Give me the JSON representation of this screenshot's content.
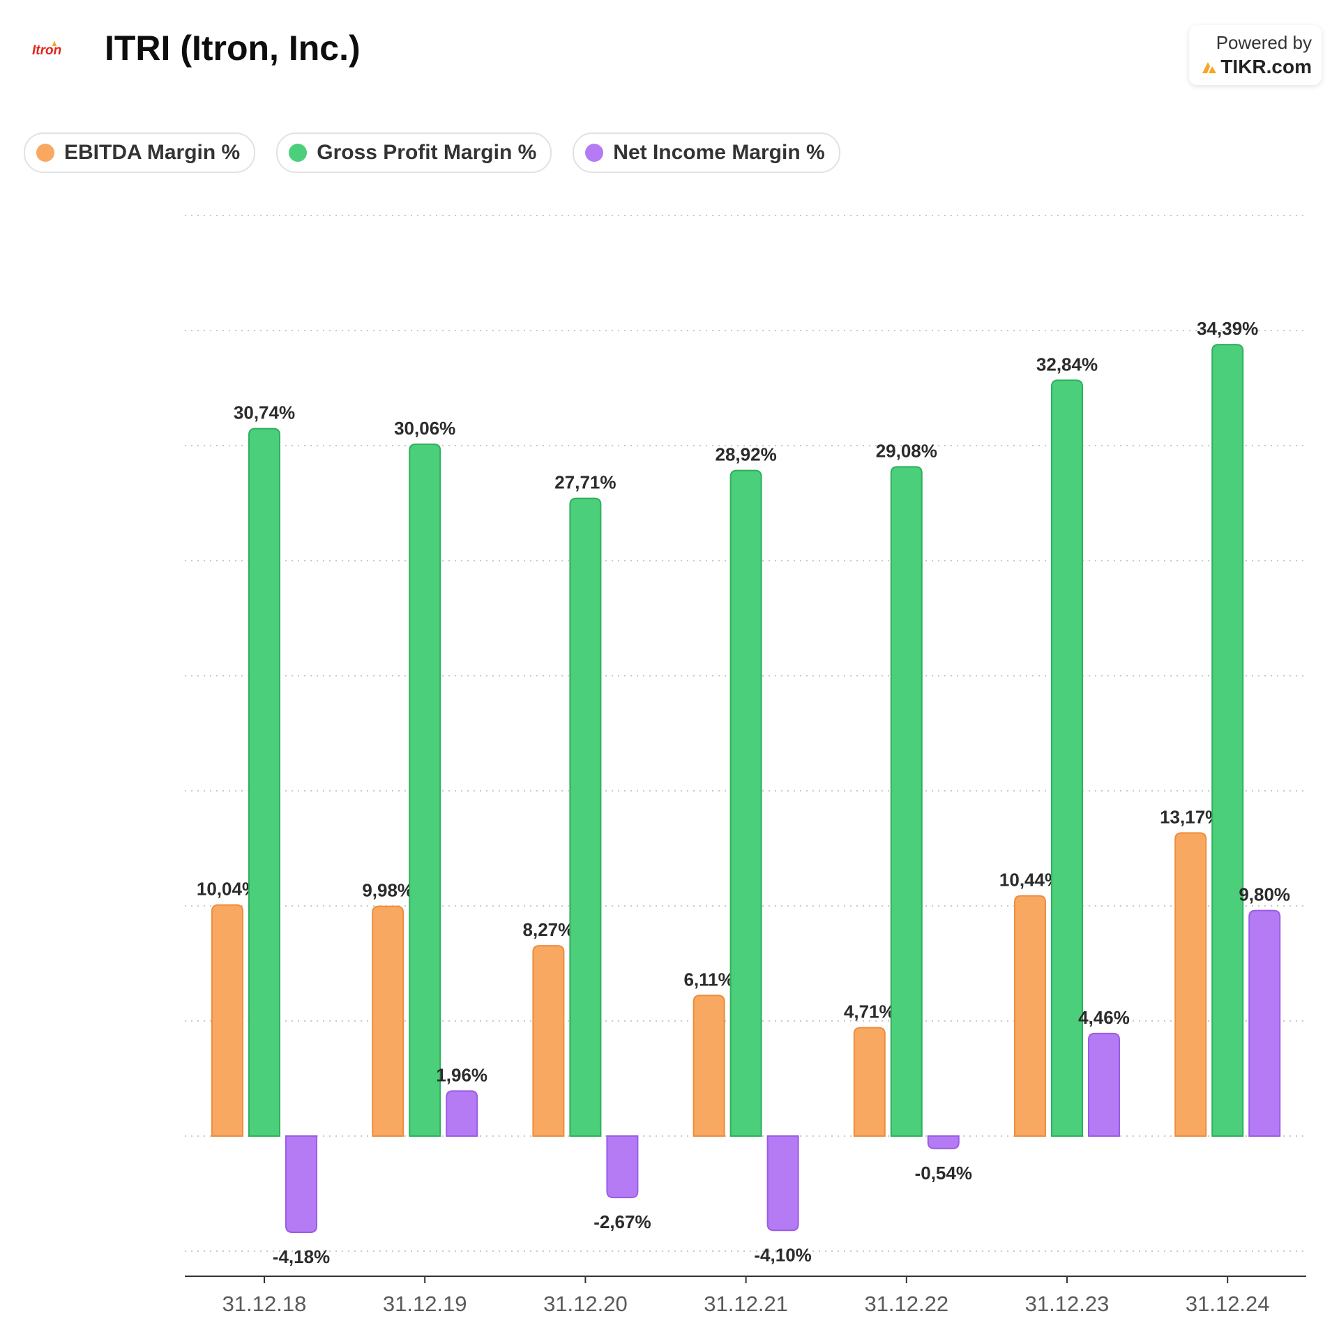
{
  "header": {
    "logo_text": "Itron",
    "title": "ITRI (Itron, Inc.)",
    "powered_by": "Powered by",
    "brand": "TIKR.com"
  },
  "colors": {
    "ebitda": "#f9a862",
    "ebitda_border": "#ee8d3e",
    "gross": "#4bcf7a",
    "gross_border": "#2fb05d",
    "net": "#b57bf5",
    "net_border": "#9a5ce6",
    "logo": "#e2261c"
  },
  "chart_data": {
    "type": "bar",
    "title": "ITRI (Itron, Inc.)",
    "categories": [
      "31.12.18",
      "31.12.19",
      "31.12.20",
      "31.12.21",
      "31.12.22",
      "31.12.23",
      "31.12.24"
    ],
    "series": [
      {
        "name": "EBITDA Margin %",
        "color": "#f9a862",
        "values": [
          10.04,
          9.98,
          8.27,
          6.11,
          4.71,
          10.44,
          13.17
        ],
        "labels": [
          "10,04%",
          "9,98%",
          "8,27%",
          "6,11%",
          "4,71%",
          "10,44%",
          "13,17%"
        ]
      },
      {
        "name": "Gross Profit Margin %",
        "color": "#4bcf7a",
        "values": [
          30.74,
          30.06,
          27.71,
          28.92,
          29.08,
          32.84,
          34.39
        ],
        "labels": [
          "30,74%",
          "30,06%",
          "27,71%",
          "28,92%",
          "29,08%",
          "32,84%",
          "34,39%"
        ]
      },
      {
        "name": "Net Income Margin %",
        "color": "#b57bf5",
        "values": [
          -4.18,
          1.96,
          -2.67,
          -4.1,
          -0.54,
          4.46,
          9.8
        ],
        "labels": [
          "-4,18%",
          "1,96%",
          "-2,67%",
          "-4,10%",
          "-0,54%",
          "4,46%",
          "9,80%"
        ]
      }
    ],
    "ylim": [
      -5,
      40
    ],
    "grid": true,
    "legend": "top-left"
  }
}
